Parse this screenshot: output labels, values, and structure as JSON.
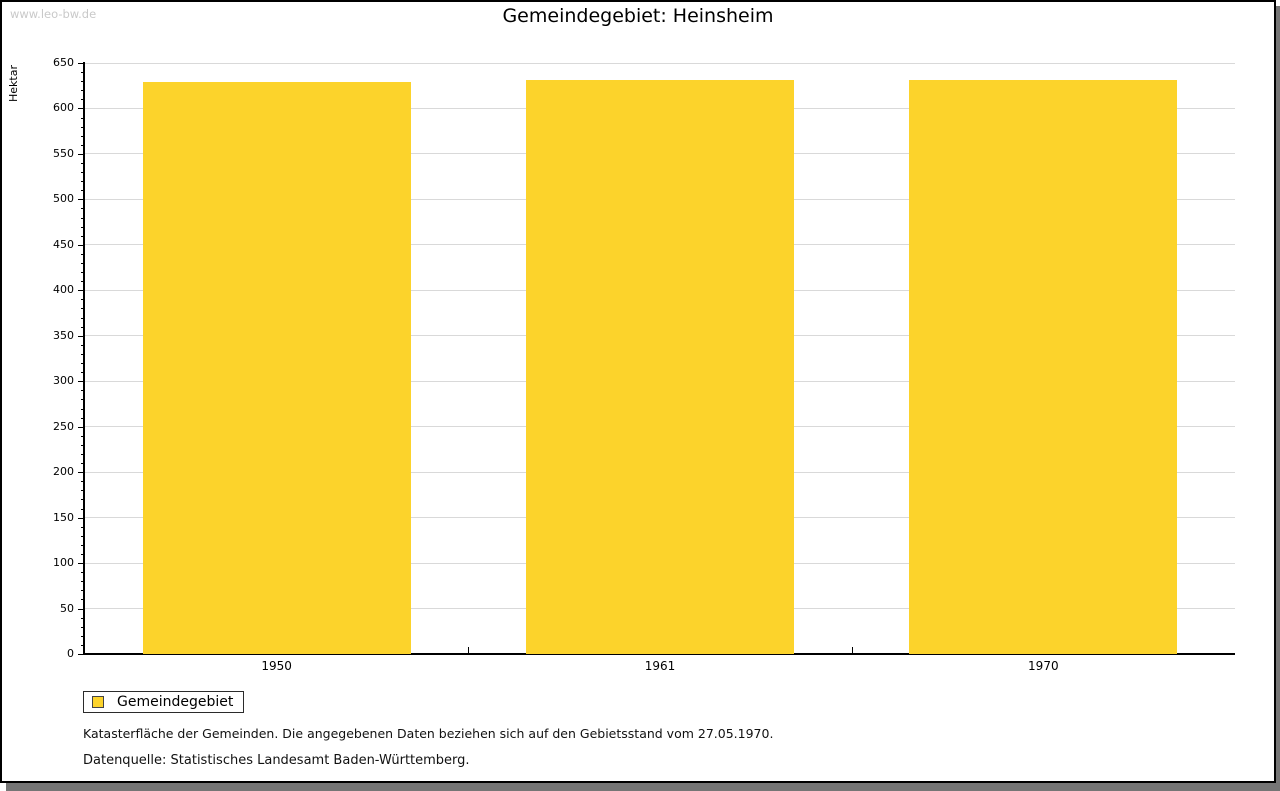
{
  "watermark": "www.leo-bw.de",
  "title": "Gemeindegebiet: Heinsheim",
  "chart_data": {
    "type": "bar",
    "title": "Gemeindegebiet: Heinsheim",
    "categories": [
      "1950",
      "1961",
      "1970"
    ],
    "series": [
      {
        "name": "Gemeindegebiet",
        "values": [
          629,
          631,
          631
        ]
      }
    ],
    "xlabel": "",
    "ylabel": "Hektar",
    "ylim": [
      0,
      650
    ],
    "y_major_step": 50,
    "y_minor_step": 10,
    "y_tick_labels": [
      "0",
      "50",
      "100",
      "150",
      "200",
      "250",
      "300",
      "350",
      "400",
      "450",
      "500",
      "550",
      "600",
      "650"
    ],
    "grid": "horizontal-major",
    "legend_position": "bottom-left",
    "bar_color": "#FCD32B"
  },
  "legend": {
    "items": [
      {
        "label": "Gemeindegebiet",
        "color": "#FCD32B",
        "swatch_border": "#444444"
      }
    ]
  },
  "footer": {
    "line1": "Katasterfläche der Gemeinden. Die angegebenen Daten beziehen sich auf den Gebietsstand vom 27.05.1970.",
    "line2": "Datenquelle: Statistisches Landesamt Baden-Württemberg."
  },
  "colors": {
    "bar": "#FCD32B",
    "gridline": "#D9D9D9",
    "axis": "#000000",
    "watermark": "#C9C9C9",
    "panel_border": "#000000",
    "shadow": "#757575",
    "background": "#FFFFFF"
  }
}
